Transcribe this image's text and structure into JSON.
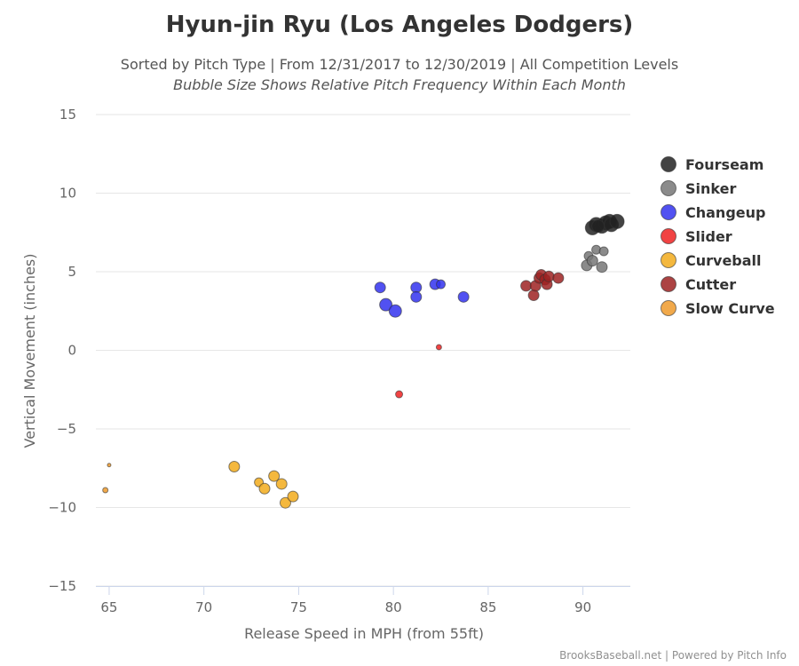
{
  "chart_data": {
    "type": "scatter",
    "title": "Hyun-jin Ryu (Los Angeles Dodgers)",
    "subtitle": "Sorted by Pitch Type | From 12/31/2017 to 12/30/2019 | All Competition Levels",
    "subtitle2": "Bubble Size Shows Relative Pitch Frequency Within Each Month",
    "xlabel": "Release Speed in MPH (from 55ft)",
    "ylabel": "Vertical Movement (inches)",
    "xlim": [
      64.3,
      92.5
    ],
    "ylim": [
      -15,
      15
    ],
    "xticks": [
      "65",
      "70",
      "75",
      "80",
      "85",
      "90"
    ],
    "yticks": [
      "15",
      "10",
      "5",
      "0",
      "−5",
      "−10",
      "−15"
    ],
    "credits": "BrooksBaseball.net | Powered by Pitch Info",
    "series": [
      {
        "name": "Fourseam",
        "color": "#222222",
        "points": [
          {
            "x": 90.5,
            "y": 7.8,
            "s": 8
          },
          {
            "x": 90.7,
            "y": 8.0,
            "s": 8
          },
          {
            "x": 91.0,
            "y": 7.9,
            "s": 8
          },
          {
            "x": 91.2,
            "y": 8.1,
            "s": 8
          },
          {
            "x": 91.4,
            "y": 8.2,
            "s": 8
          },
          {
            "x": 91.5,
            "y": 8.0,
            "s": 8
          },
          {
            "x": 91.8,
            "y": 8.2,
            "s": 8
          },
          {
            "x": 90.8,
            "y": 7.9,
            "s": 7
          }
        ]
      },
      {
        "name": "Sinker",
        "color": "#777777",
        "points": [
          {
            "x": 90.2,
            "y": 5.4,
            "s": 6
          },
          {
            "x": 90.3,
            "y": 6.0,
            "s": 5
          },
          {
            "x": 90.5,
            "y": 5.7,
            "s": 6
          },
          {
            "x": 90.7,
            "y": 6.4,
            "s": 5
          },
          {
            "x": 91.0,
            "y": 5.3,
            "s": 6
          },
          {
            "x": 91.1,
            "y": 6.3,
            "s": 5
          }
        ]
      },
      {
        "name": "Changeup",
        "color": "#3333ee",
        "points": [
          {
            "x": 79.3,
            "y": 4.0,
            "s": 6
          },
          {
            "x": 79.6,
            "y": 2.9,
            "s": 7
          },
          {
            "x": 80.1,
            "y": 2.5,
            "s": 7
          },
          {
            "x": 81.2,
            "y": 4.0,
            "s": 6
          },
          {
            "x": 81.2,
            "y": 3.4,
            "s": 6
          },
          {
            "x": 82.2,
            "y": 4.2,
            "s": 6
          },
          {
            "x": 82.5,
            "y": 4.2,
            "s": 5
          },
          {
            "x": 83.7,
            "y": 3.4,
            "s": 6
          }
        ]
      },
      {
        "name": "Slider",
        "color": "#ee2222",
        "points": [
          {
            "x": 80.3,
            "y": -2.8,
            "s": 4
          },
          {
            "x": 82.4,
            "y": 0.2,
            "s": 3
          }
        ]
      },
      {
        "name": "Curveball",
        "color": "#f2ac1c",
        "points": [
          {
            "x": 71.6,
            "y": -7.4,
            "s": 6
          },
          {
            "x": 72.9,
            "y": -8.4,
            "s": 5
          },
          {
            "x": 73.2,
            "y": -8.8,
            "s": 6
          },
          {
            "x": 73.7,
            "y": -8.0,
            "s": 6
          },
          {
            "x": 74.1,
            "y": -8.5,
            "s": 6
          },
          {
            "x": 74.3,
            "y": -9.7,
            "s": 6
          },
          {
            "x": 74.7,
            "y": -9.3,
            "s": 6
          }
        ]
      },
      {
        "name": "Cutter",
        "color": "#9e2222",
        "points": [
          {
            "x": 87.0,
            "y": 4.1,
            "s": 6
          },
          {
            "x": 87.4,
            "y": 3.5,
            "s": 6
          },
          {
            "x": 87.5,
            "y": 4.1,
            "s": 6
          },
          {
            "x": 87.7,
            "y": 4.6,
            "s": 6
          },
          {
            "x": 87.8,
            "y": 4.8,
            "s": 6
          },
          {
            "x": 88.0,
            "y": 4.5,
            "s": 6
          },
          {
            "x": 88.1,
            "y": 4.2,
            "s": 6
          },
          {
            "x": 88.2,
            "y": 4.7,
            "s": 6
          },
          {
            "x": 88.7,
            "y": 4.6,
            "s": 6
          }
        ]
      },
      {
        "name": "Slow Curve",
        "color": "#ef9a2c",
        "points": [
          {
            "x": 64.8,
            "y": -8.9,
            "s": 3
          },
          {
            "x": 65.0,
            "y": -7.3,
            "s": 2
          }
        ]
      }
    ]
  }
}
